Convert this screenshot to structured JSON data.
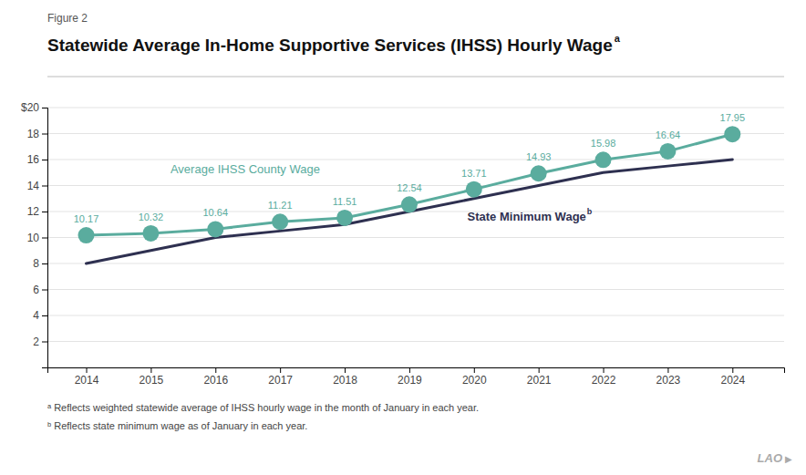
{
  "chart_data": {
    "type": "line",
    "subtitle": "Figure 2",
    "title": "Statewide Average In-Home Supportive Services (IHSS) Hourly Wage",
    "x": [
      2014,
      2015,
      2016,
      2017,
      2018,
      2019,
      2020,
      2021,
      2022,
      2023,
      2024
    ],
    "series": [
      {
        "name": "State Minimum Wage",
        "color": "#2e3050",
        "marker": "none",
        "values": [
          8.0,
          9.0,
          10.0,
          10.5,
          11.0,
          12.0,
          13.0,
          14.0,
          15.0,
          15.5,
          16.0
        ]
      },
      {
        "name": "Average IHSS County Wage",
        "color": "#5aac9e",
        "marker": "circle",
        "data_labels": true,
        "values": [
          10.17,
          10.32,
          10.64,
          11.21,
          11.51,
          12.54,
          13.71,
          14.93,
          15.98,
          16.64,
          17.95
        ]
      }
    ],
    "xlim": [
      2013.4,
      2024.8
    ],
    "xticks": [
      2014,
      2015,
      2016,
      2017,
      2018,
      2019,
      2020,
      2021,
      2022,
      2023,
      2024
    ],
    "ylim": [
      0,
      20
    ],
    "yticks": [
      2,
      4,
      6,
      8,
      10,
      12,
      14,
      16,
      18,
      {
        "value": 20,
        "label": "$20"
      }
    ],
    "grid": true,
    "annotations": [
      "a",
      "b",
      "ᵃ Reflects weighted statewide average of IHSS hourly wage in the month of January in each year.",
      "ᵇ Reflects state minimum wage as of January in each year.",
      "LAO",
      "▶"
    ]
  }
}
